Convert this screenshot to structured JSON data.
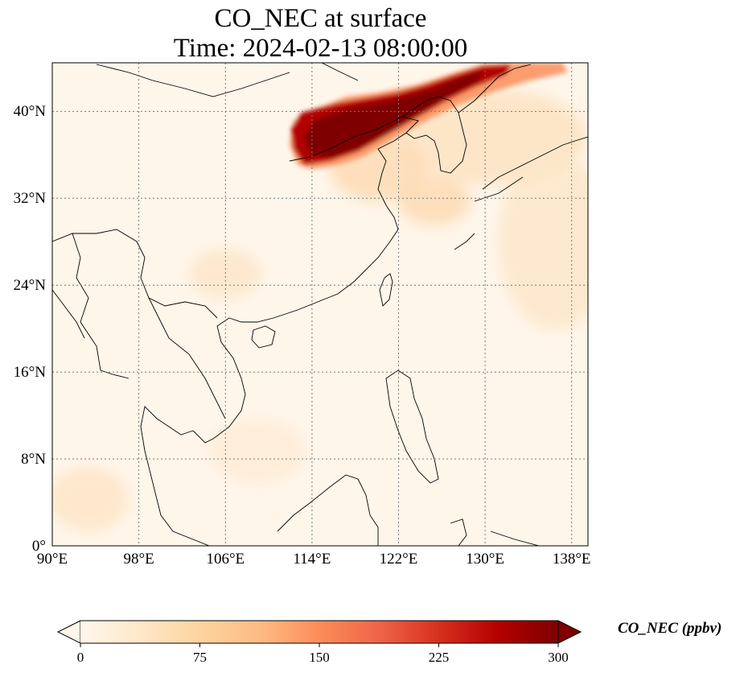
{
  "title": {
    "line1": "CO_NEC at surface",
    "line2": "Time: 2024-02-13 08:00:00"
  },
  "map": {
    "extent": {
      "lon": [
        90,
        139.5
      ],
      "lat": [
        0,
        44.5
      ]
    },
    "x_ticks": [
      "90°E",
      "98°E",
      "106°E",
      "114°E",
      "122°E",
      "130°E",
      "138°E"
    ],
    "y_ticks": [
      "0°",
      "8°N",
      "16°N",
      "24°N",
      "32°N",
      "40°N"
    ],
    "gridlines": true
  },
  "colorbar": {
    "label": "CO_NEC (ppbv)",
    "ticks": [
      "0",
      "75",
      "150",
      "225",
      "300"
    ],
    "range": [
      0,
      300
    ],
    "colormap": "OrRd",
    "colors": [
      "#fff7ec",
      "#fee8c8",
      "#fdd49e",
      "#fdbb84",
      "#fc8d59",
      "#ef6548",
      "#d7301f",
      "#b30000",
      "#7f0000"
    ]
  }
}
